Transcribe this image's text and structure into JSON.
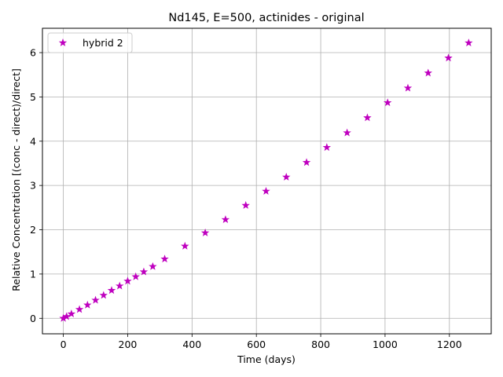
{
  "chart_data": {
    "type": "scatter",
    "title": "Nd145, E=500, actinides - original",
    "xlabel": "Time (days)",
    "ylabel": "Relative Concentration [(conc - direct)/direct]",
    "xlim": [
      -65,
      1330
    ],
    "ylim": [
      -0.35,
      6.55
    ],
    "xticks": [
      0,
      200,
      400,
      600,
      800,
      1000,
      1200
    ],
    "yticks": [
      0,
      1,
      2,
      3,
      4,
      5,
      6
    ],
    "grid": true,
    "legend_position": "upper-left",
    "series": [
      {
        "name": "hybrid 2",
        "color": "#bf00bf",
        "marker": "star",
        "x": [
          0,
          10,
          25,
          50,
          75,
          100,
          125,
          150,
          175,
          200,
          225,
          250,
          278,
          315,
          378,
          441,
          504,
          567,
          630,
          693,
          756,
          819,
          882,
          945,
          1008,
          1071,
          1134,
          1197,
          1260
        ],
        "y": [
          0.0,
          0.04,
          0.1,
          0.2,
          0.3,
          0.41,
          0.52,
          0.63,
          0.73,
          0.84,
          0.94,
          1.05,
          1.17,
          1.34,
          1.63,
          1.93,
          2.23,
          2.55,
          2.87,
          3.19,
          3.52,
          3.86,
          4.19,
          4.53,
          4.87,
          5.2,
          5.54,
          5.88,
          6.22
        ]
      }
    ]
  }
}
